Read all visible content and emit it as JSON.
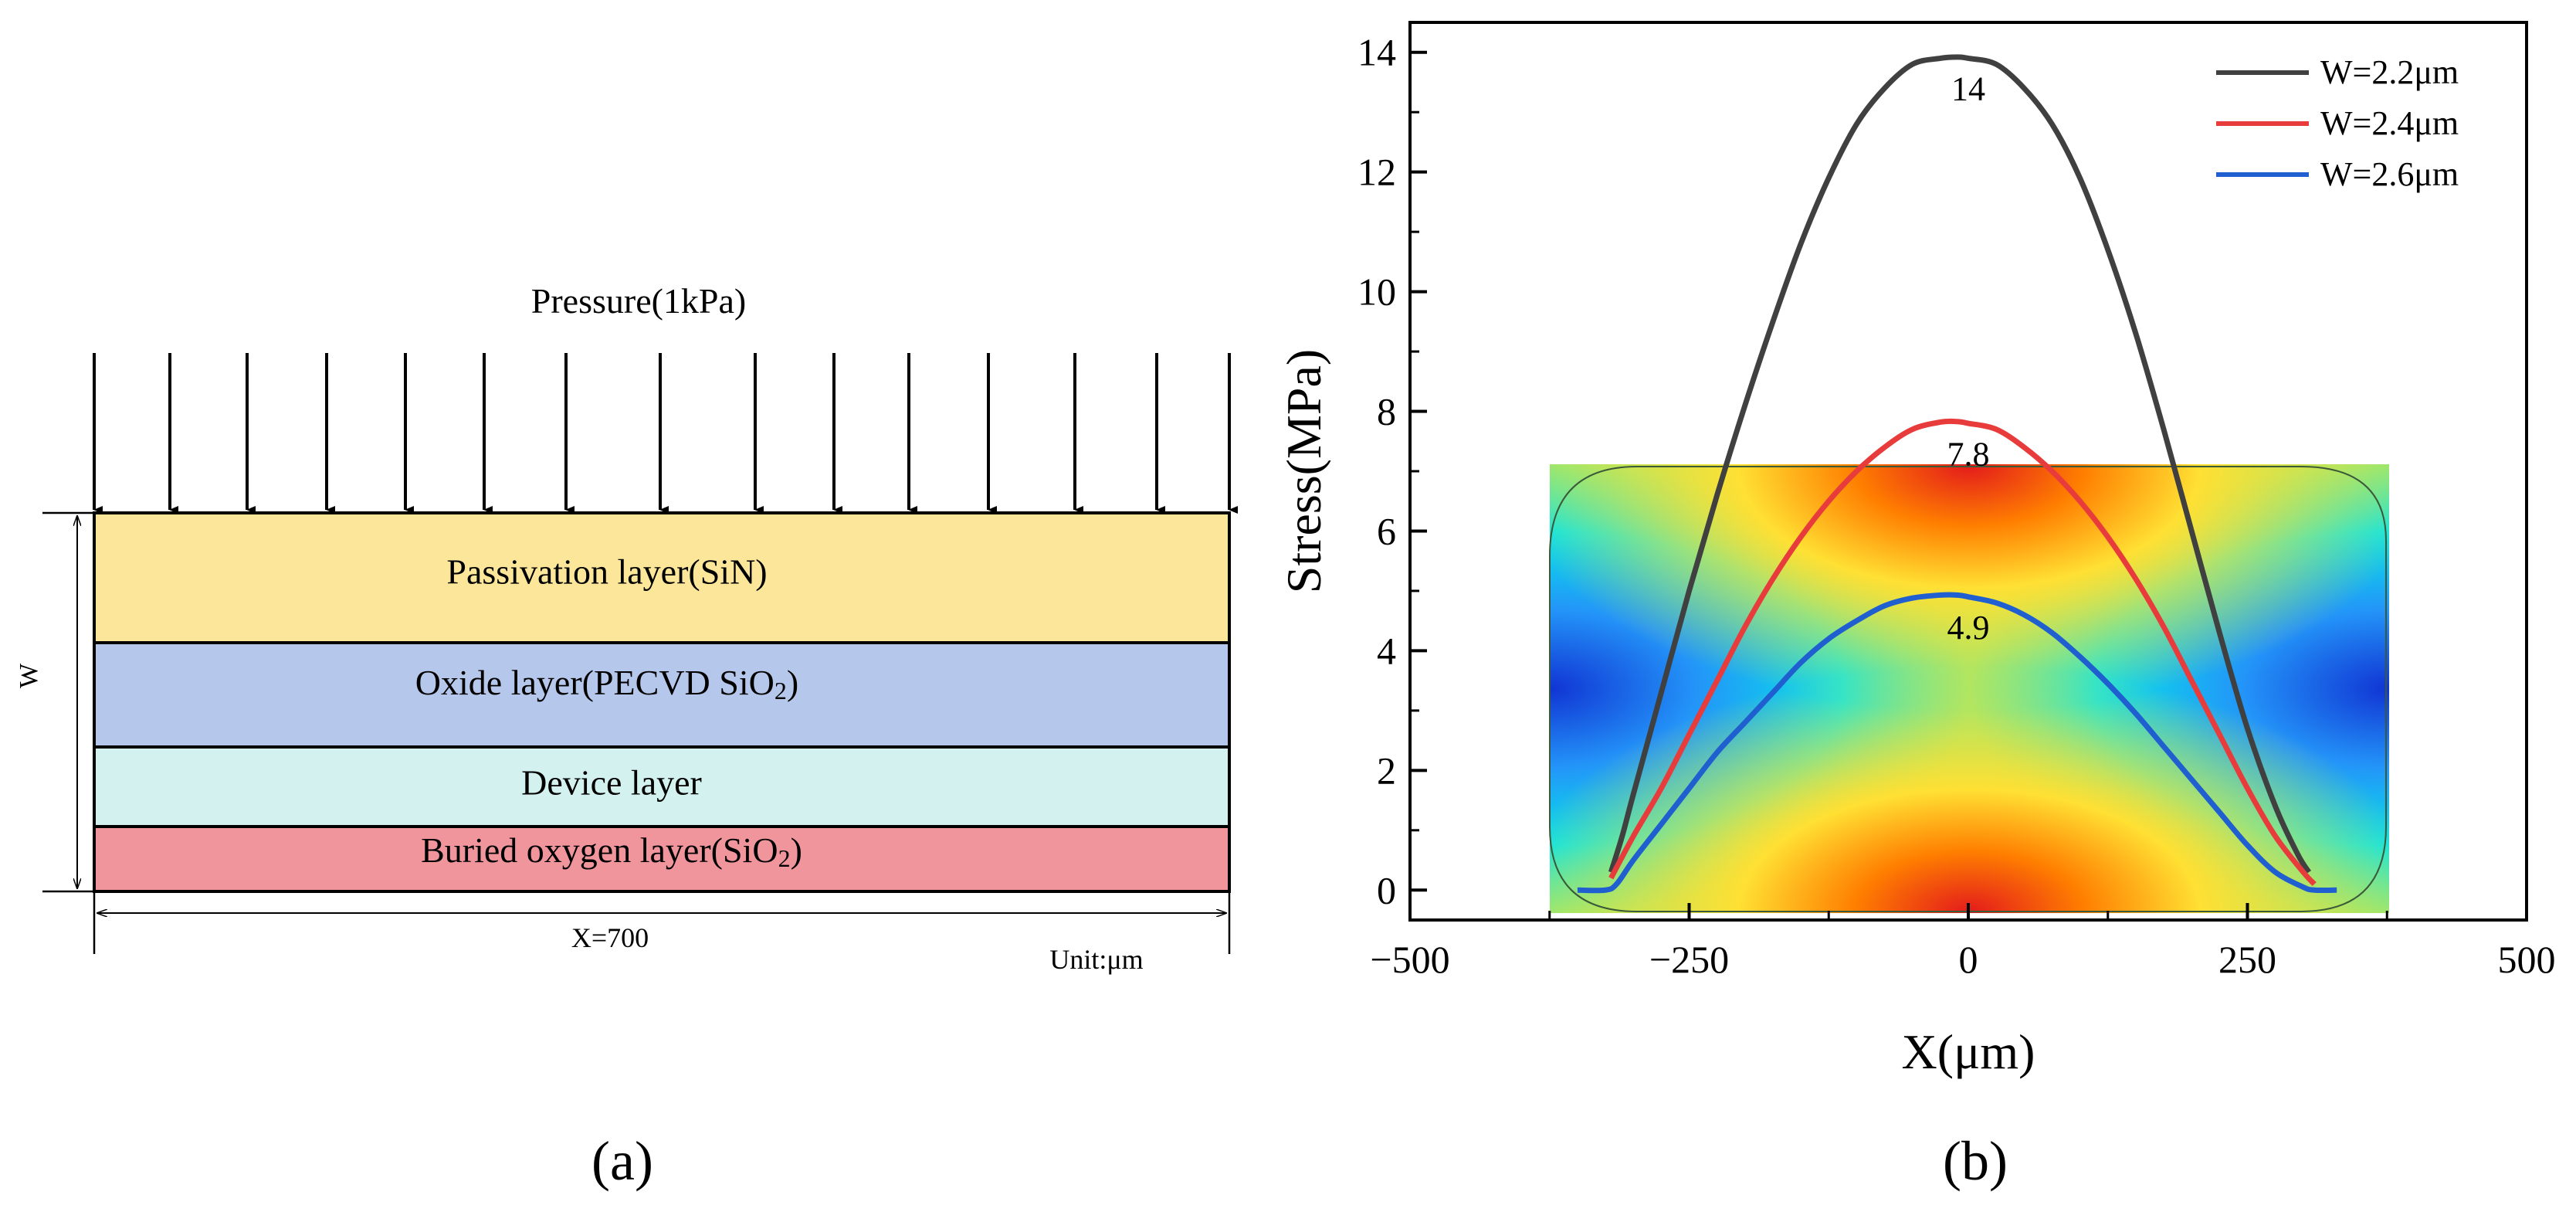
{
  "diagram_a": {
    "pressure_label": "Pressure(1kPa)",
    "layers": [
      {
        "label": "Passivation layer(SiN)",
        "color": "#fce69a"
      },
      {
        "label": "Oxide layer(PECVD SiO",
        "sub": "2",
        "close": ")",
        "color": "#b5c7ea"
      },
      {
        "label": "Device layer",
        "color": "#d3f2ef"
      },
      {
        "label": "Buried oxygen layer(SiO",
        "sub": "2",
        "close": ")",
        "color": "#f0959c"
      }
    ],
    "w_label": "W",
    "x_label": "X=700",
    "unit_label": "Unit:μm",
    "caption": "(a)"
  },
  "chart_data": {
    "type": "line",
    "xlabel": "X(μm)",
    "ylabel": "Stress(MPa)",
    "xlim": [
      -500,
      500
    ],
    "ylim": [
      -0.5,
      14.5
    ],
    "xticks": [
      -500,
      -250,
      0,
      250,
      500
    ],
    "xtick_labels": [
      "−500",
      "−250",
      "0",
      "250",
      "500"
    ],
    "yticks": [
      0,
      2,
      4,
      6,
      8,
      10,
      12,
      14
    ],
    "ytick_labels": [
      "0",
      "2",
      "4",
      "6",
      "8",
      "10",
      "12",
      "14"
    ],
    "grid": false,
    "legend": "top-right",
    "series": [
      {
        "name": "W=2.2μm",
        "color": "#404040",
        "x": [
          -320,
          -310,
          -300,
          -275,
          -250,
          -225,
          -200,
          -175,
          -150,
          -125,
          -100,
          -75,
          -50,
          -25,
          -10,
          0,
          25,
          50,
          75,
          100,
          125,
          150,
          175,
          200,
          225,
          250,
          275,
          295,
          305
        ],
        "y": [
          0.3,
          0.9,
          1.6,
          3.3,
          5.0,
          6.6,
          8.1,
          9.5,
          10.8,
          11.9,
          12.8,
          13.4,
          13.8,
          13.9,
          13.92,
          13.9,
          13.8,
          13.4,
          12.8,
          11.9,
          10.7,
          9.3,
          7.7,
          6.0,
          4.3,
          2.7,
          1.4,
          0.6,
          0.3
        ]
      },
      {
        "name": "W=2.4μm",
        "color": "#e83c3c",
        "x": [
          -320,
          -300,
          -275,
          -250,
          -225,
          -200,
          -175,
          -150,
          -125,
          -100,
          -75,
          -50,
          -25,
          -10,
          0,
          25,
          50,
          75,
          100,
          125,
          150,
          175,
          200,
          225,
          250,
          275,
          300,
          310
        ],
        "y": [
          0.2,
          0.9,
          1.7,
          2.6,
          3.5,
          4.4,
          5.2,
          5.9,
          6.5,
          7.0,
          7.4,
          7.7,
          7.82,
          7.83,
          7.8,
          7.7,
          7.4,
          7.0,
          6.5,
          5.9,
          5.2,
          4.4,
          3.5,
          2.6,
          1.7,
          0.9,
          0.3,
          0.1
        ]
      },
      {
        "name": "W=2.6μm",
        "color": "#1f5fcf",
        "x": [
          -350,
          -325,
          -315,
          -300,
          -275,
          -250,
          -225,
          -200,
          -175,
          -150,
          -125,
          -100,
          -75,
          -50,
          -25,
          -10,
          0,
          25,
          50,
          75,
          100,
          125,
          150,
          175,
          200,
          225,
          250,
          275,
          300,
          310,
          330
        ],
        "y": [
          0,
          0,
          0.1,
          0.5,
          1.1,
          1.7,
          2.3,
          2.8,
          3.3,
          3.8,
          4.2,
          4.5,
          4.75,
          4.88,
          4.93,
          4.93,
          4.9,
          4.8,
          4.6,
          4.3,
          3.9,
          3.45,
          2.95,
          2.4,
          1.85,
          1.3,
          0.75,
          0.3,
          0.05,
          0,
          0
        ]
      }
    ],
    "annotations": [
      {
        "text": "14",
        "x": 0,
        "y": 13.2
      },
      {
        "text": "7.8",
        "x": 0,
        "y": 7.1
      },
      {
        "text": "4.9",
        "x": 0,
        "y": 4.2
      }
    ],
    "caption": "(b)"
  }
}
